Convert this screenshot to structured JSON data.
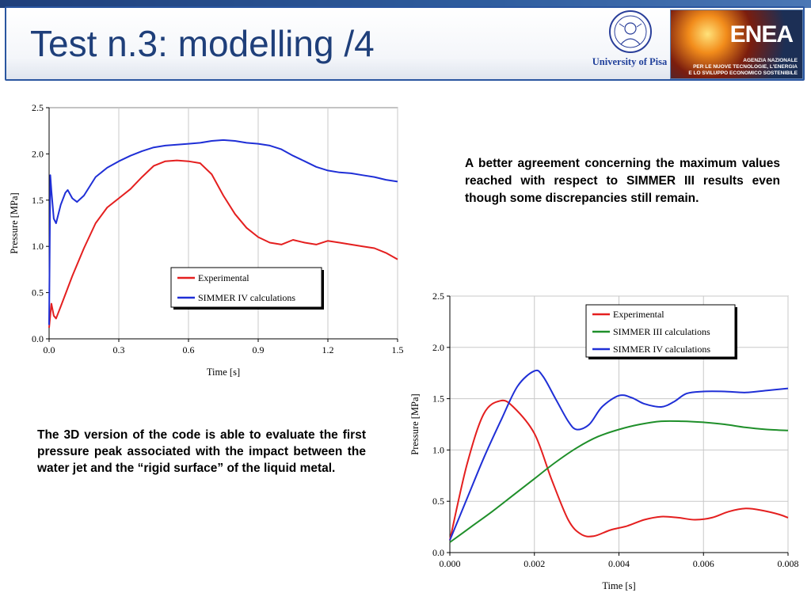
{
  "header": {
    "title": "Test n.3: modelling /4",
    "university_label": "University of Pisa",
    "enea_logo": "ENEA",
    "enea_subtitle_lines": [
      "AGENZIA NAZIONALE",
      "PER LE NUOVE TECNOLOGIE, L'ENERGIA",
      "E LO SVILUPPO ECONOMICO SOSTENIBILE"
    ],
    "colors": {
      "title": "#1f3f7a",
      "accent": "#2a56a0"
    }
  },
  "text_right": "A better agreement concerning the maximum values reached  with respect to SIMMER III results even though some discrepancies still remain.",
  "text_left": "The 3D version of the code is able to evaluate the first pressure peak associated with the  impact between the water jet and the “rigid surface” of the liquid metal.",
  "chart_data": [
    {
      "type": "line",
      "xlabel": "Time [s]",
      "ylabel": "Pressure [MPa]",
      "xlim": [
        0,
        1.5
      ],
      "ylim": [
        0,
        2.5
      ],
      "xticks": [
        "0.0",
        "0.3",
        "0.6",
        "0.9",
        "1.2",
        "1.5"
      ],
      "yticks": [
        "0.0",
        "0.5",
        "1.0",
        "1.5",
        "2.0",
        "2.5"
      ],
      "grid": "vertical",
      "legend": "bottom-right",
      "series": [
        {
          "name": "Experimental",
          "color": "#e41f1f",
          "x": [
            0.0,
            0.01,
            0.02,
            0.03,
            0.05,
            0.07,
            0.1,
            0.15,
            0.2,
            0.25,
            0.3,
            0.35,
            0.4,
            0.45,
            0.5,
            0.55,
            0.6,
            0.65,
            0.7,
            0.75,
            0.8,
            0.85,
            0.9,
            0.95,
            1.0,
            1.05,
            1.1,
            1.15,
            1.2,
            1.25,
            1.3,
            1.35,
            1.4,
            1.45,
            1.5
          ],
          "y": [
            0.12,
            0.38,
            0.25,
            0.22,
            0.35,
            0.48,
            0.68,
            0.98,
            1.25,
            1.42,
            1.52,
            1.62,
            1.75,
            1.87,
            1.92,
            1.93,
            1.92,
            1.9,
            1.78,
            1.55,
            1.35,
            1.2,
            1.1,
            1.04,
            1.02,
            1.07,
            1.04,
            1.02,
            1.06,
            1.04,
            1.02,
            1.0,
            0.98,
            0.93,
            0.86
          ]
        },
        {
          "name": "SIMMER IV calculations",
          "color": "#1f2fd6",
          "x": [
            0.0,
            0.005,
            0.01,
            0.02,
            0.03,
            0.05,
            0.07,
            0.08,
            0.1,
            0.12,
            0.15,
            0.2,
            0.25,
            0.3,
            0.35,
            0.4,
            0.45,
            0.5,
            0.55,
            0.6,
            0.65,
            0.7,
            0.75,
            0.8,
            0.85,
            0.9,
            0.95,
            1.0,
            1.05,
            1.1,
            1.15,
            1.2,
            1.25,
            1.3,
            1.35,
            1.4,
            1.45,
            1.5
          ],
          "y": [
            0.15,
            1.77,
            1.6,
            1.3,
            1.25,
            1.45,
            1.58,
            1.61,
            1.52,
            1.48,
            1.55,
            1.75,
            1.85,
            1.92,
            1.98,
            2.03,
            2.07,
            2.09,
            2.1,
            2.11,
            2.12,
            2.14,
            2.15,
            2.14,
            2.12,
            2.11,
            2.09,
            2.05,
            1.98,
            1.92,
            1.86,
            1.82,
            1.8,
            1.79,
            1.77,
            1.75,
            1.72,
            1.7
          ]
        }
      ]
    },
    {
      "type": "line",
      "xlabel": "Time [s]",
      "ylabel": "Pressure [MPa]",
      "xlim": [
        0,
        0.008
      ],
      "ylim": [
        0,
        2.5
      ],
      "xticks": [
        "0.000",
        "0.002",
        "0.004",
        "0.006",
        "0.008"
      ],
      "yticks": [
        "0.0",
        "0.5",
        "1.0",
        "1.5",
        "2.0",
        "2.5"
      ],
      "grid": "both",
      "legend": "top-right",
      "series": [
        {
          "name": "Experimental",
          "color": "#e41f1f",
          "x": [
            0.0,
            0.0004,
            0.0008,
            0.0012,
            0.0015,
            0.002,
            0.0024,
            0.0028,
            0.0031,
            0.0034,
            0.0038,
            0.0042,
            0.0046,
            0.005,
            0.0054,
            0.0058,
            0.0062,
            0.0066,
            0.007,
            0.0074,
            0.0078,
            0.008
          ],
          "y": [
            0.12,
            0.85,
            1.35,
            1.48,
            1.42,
            1.16,
            0.72,
            0.32,
            0.18,
            0.16,
            0.22,
            0.26,
            0.32,
            0.35,
            0.34,
            0.32,
            0.34,
            0.4,
            0.43,
            0.41,
            0.37,
            0.34
          ]
        },
        {
          "name": "SIMMER III calculations",
          "color": "#1f8f2a",
          "x": [
            0.0,
            0.0005,
            0.001,
            0.0015,
            0.002,
            0.0025,
            0.003,
            0.0035,
            0.004,
            0.0045,
            0.005,
            0.0055,
            0.006,
            0.0065,
            0.007,
            0.0075,
            0.008
          ],
          "y": [
            0.1,
            0.25,
            0.4,
            0.56,
            0.72,
            0.88,
            1.02,
            1.13,
            1.2,
            1.25,
            1.28,
            1.28,
            1.27,
            1.25,
            1.22,
            1.2,
            1.19
          ]
        },
        {
          "name": "SIMMER IV calculations",
          "color": "#1f2fd6",
          "x": [
            0.0,
            0.0004,
            0.0008,
            0.0012,
            0.0016,
            0.002,
            0.0022,
            0.0025,
            0.0028,
            0.003,
            0.0033,
            0.0036,
            0.004,
            0.0043,
            0.0046,
            0.005,
            0.0053,
            0.0056,
            0.006,
            0.0065,
            0.007,
            0.0075,
            0.008
          ],
          "y": [
            0.12,
            0.52,
            0.92,
            1.28,
            1.62,
            1.77,
            1.72,
            1.5,
            1.28,
            1.2,
            1.25,
            1.42,
            1.53,
            1.51,
            1.45,
            1.42,
            1.47,
            1.55,
            1.57,
            1.57,
            1.56,
            1.58,
            1.6
          ]
        }
      ]
    }
  ]
}
